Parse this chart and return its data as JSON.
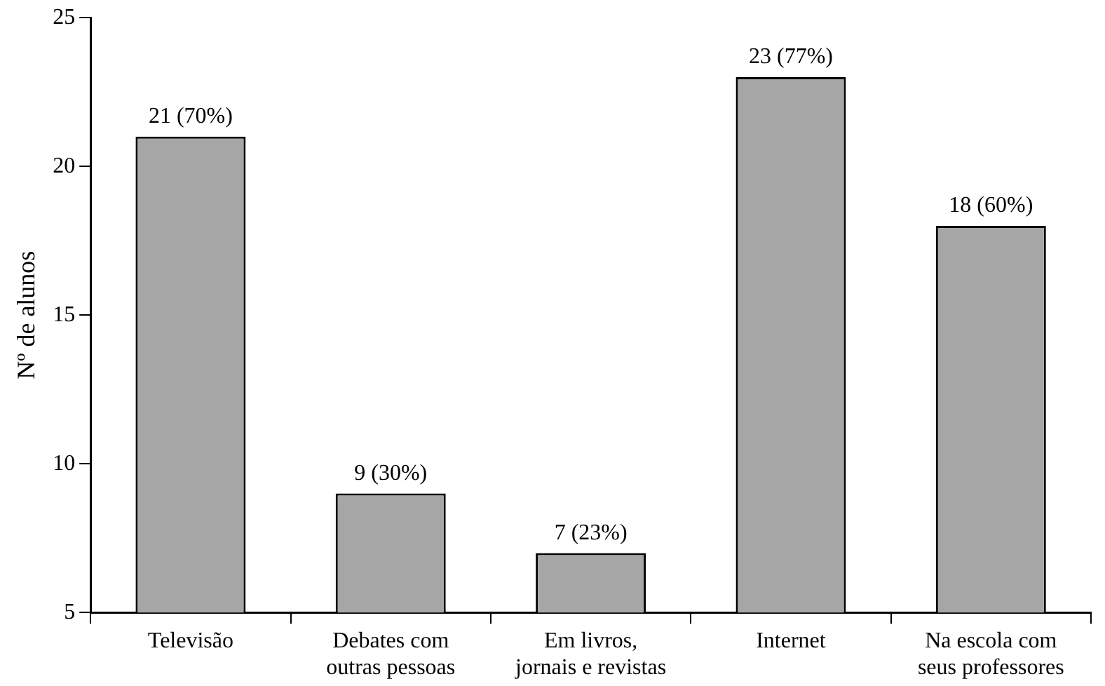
{
  "chart_data": {
    "type": "bar",
    "ylabel": "Nº de alunos",
    "categories": [
      "Televisão",
      "Debates com\noutras pessoas",
      "Em livros,\njornais e revistas",
      "Internet",
      "Na escola com\nseus professores"
    ],
    "values": [
      21,
      9,
      7,
      23,
      18
    ],
    "value_labels": [
      "21 (70%)",
      "9 (30%)",
      "7 (23%)",
      "23 (77%)",
      "18 (60%)"
    ],
    "color": "#a6a6a6",
    "ylim": [
      5,
      25
    ],
    "yticks": [
      5,
      10,
      15,
      20,
      25
    ],
    "grid": false,
    "legend": false
  }
}
